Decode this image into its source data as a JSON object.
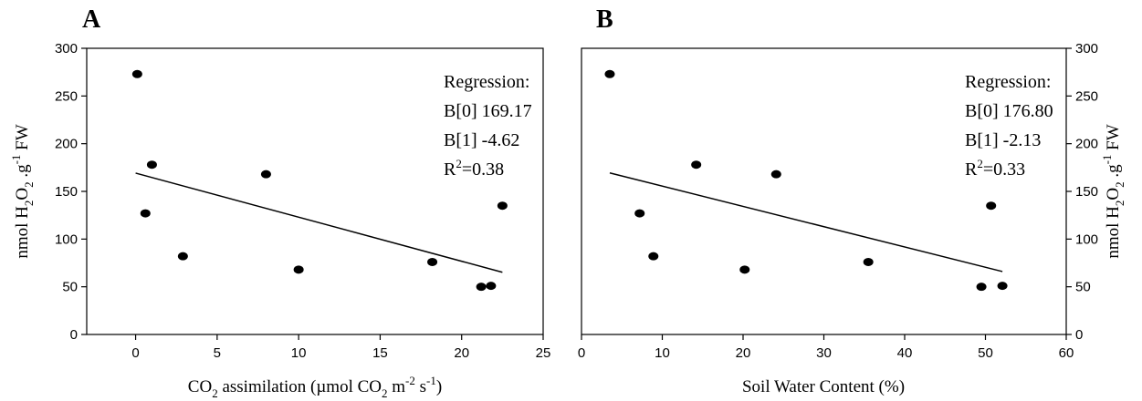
{
  "chart_data": [
    {
      "type": "scatter",
      "panel": "A",
      "title": "",
      "xlabel": {
        "pre": "CO",
        "sub1": "2",
        "mid": " assimilation (µmol CO",
        "sub2": "2",
        "mid2": " m",
        "sup1": "-2",
        "mid3": " s",
        "sup2": "-1",
        "post": ")"
      },
      "ylabel": {
        "pre": "nmol H",
        "sub1": "2",
        "mid": "O",
        "sub2": "2",
        "mid2": " .g",
        "sup": "-1",
        "post": " FW"
      },
      "xlim": [
        -3,
        25
      ],
      "ylim": [
        0,
        300
      ],
      "xticks": [
        0,
        5,
        10,
        15,
        20,
        25
      ],
      "yticks": [
        0,
        50,
        100,
        150,
        200,
        250,
        300
      ],
      "yaxis_side": "left",
      "grid": false,
      "points": [
        {
          "x": 0.1,
          "y": 273
        },
        {
          "x": 1.0,
          "y": 178
        },
        {
          "x": 0.6,
          "y": 127
        },
        {
          "x": 2.9,
          "y": 82
        },
        {
          "x": 8.0,
          "y": 168
        },
        {
          "x": 10.0,
          "y": 68
        },
        {
          "x": 18.2,
          "y": 76
        },
        {
          "x": 21.2,
          "y": 50
        },
        {
          "x": 21.8,
          "y": 51
        },
        {
          "x": 22.5,
          "y": 135
        }
      ],
      "regression_line": {
        "x": [
          0,
          22.5
        ],
        "y": [
          169.17,
          65.22
        ]
      },
      "annotation": {
        "heading": "Regression:",
        "b0": "B[0] 169.17",
        "b1": "B[1] -4.62",
        "r2_pre": "R",
        "r2_sup": "2",
        "r2_post": "=0.38"
      }
    },
    {
      "type": "scatter",
      "panel": "B",
      "title": "",
      "xlabel": {
        "text": "Soil Water Content (%)"
      },
      "ylabel": {
        "pre": "nmol H",
        "sub1": "2",
        "mid": "O",
        "sub2": "2",
        "mid2": " .g",
        "sup": "-1",
        "post": " FW"
      },
      "xlim": [
        0,
        60
      ],
      "ylim": [
        0,
        300
      ],
      "xticks": [
        0,
        10,
        20,
        30,
        40,
        50,
        60
      ],
      "yticks": [
        0,
        50,
        100,
        150,
        200,
        250,
        300
      ],
      "yaxis_side": "right",
      "grid": false,
      "points": [
        {
          "x": 3.5,
          "y": 273
        },
        {
          "x": 7.2,
          "y": 127
        },
        {
          "x": 8.9,
          "y": 82
        },
        {
          "x": 14.2,
          "y": 178
        },
        {
          "x": 20.2,
          "y": 68
        },
        {
          "x": 24.1,
          "y": 168
        },
        {
          "x": 35.5,
          "y": 76
        },
        {
          "x": 49.5,
          "y": 50
        },
        {
          "x": 50.7,
          "y": 135
        },
        {
          "x": 52.1,
          "y": 51
        }
      ],
      "regression_line": {
        "x": [
          3.5,
          52.1
        ],
        "y": [
          169.35,
          66.0
        ]
      },
      "annotation": {
        "heading": "Regression:",
        "b0": "B[0] 176.80",
        "b1": "B[1] -2.13",
        "r2_pre": "R",
        "r2_sup": "2",
        "r2_post": "=0.33"
      }
    }
  ]
}
